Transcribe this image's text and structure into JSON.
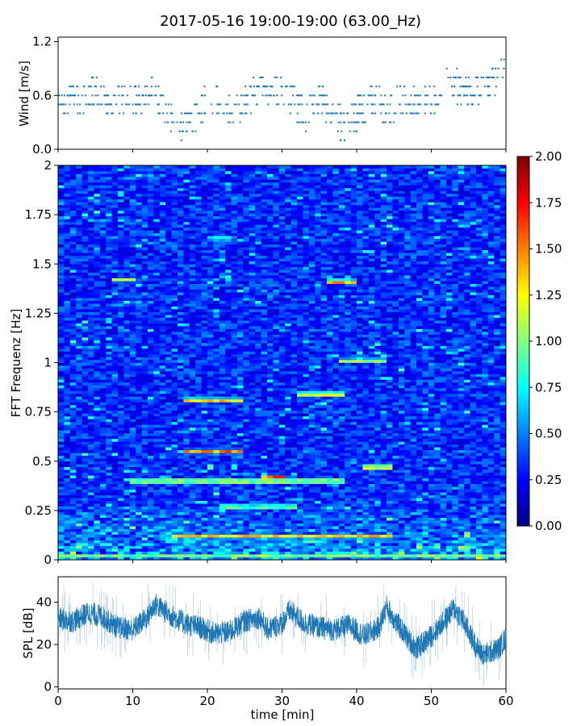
{
  "figure_title": "2017-05-16 19:00-19:00 (63.00_Hz)",
  "chart_data": [
    {
      "id": "wind",
      "type": "scatter",
      "title": "",
      "xlabel": "",
      "ylabel": "Wind [m/s]",
      "xlim": [
        0,
        60
      ],
      "ylim": [
        0,
        1.25
      ],
      "yticks": [
        0.0,
        0.6,
        1.2
      ],
      "ytick_labels": [
        "0.0",
        "0.6",
        "1.2"
      ],
      "xticks": [
        0,
        10,
        20,
        30,
        40,
        50,
        60
      ],
      "color": "#1f77b4",
      "series": [
        {
          "name": "wind",
          "x": [
            0,
            3,
            5,
            7,
            9,
            11,
            13,
            15,
            16,
            17,
            18,
            20,
            22,
            24,
            26,
            27,
            29,
            31,
            33,
            35,
            37,
            38,
            40,
            42,
            44,
            46,
            48,
            50,
            52,
            53,
            55,
            57,
            59,
            60
          ],
          "y": [
            0.55,
            0.55,
            0.65,
            0.5,
            0.6,
            0.6,
            0.62,
            0.35,
            0.3,
            0.25,
            0.3,
            0.6,
            0.45,
            0.4,
            0.6,
            0.75,
            0.65,
            0.6,
            0.4,
            0.55,
            0.4,
            0.25,
            0.4,
            0.55,
            0.45,
            0.55,
            0.5,
            0.55,
            0.7,
            0.75,
            0.6,
            0.7,
            0.8,
            0.9
          ]
        }
      ]
    },
    {
      "id": "spectrogram",
      "type": "heatmap",
      "title": "",
      "xlabel": "",
      "ylabel": "FFT Frequenz [Hz]",
      "xlim": [
        0,
        60
      ],
      "ylim": [
        0,
        2
      ],
      "yticks": [
        0,
        0.25,
        0.5,
        0.75,
        1,
        1.25,
        1.5,
        1.75,
        2
      ],
      "ytick_labels": [
        "0",
        "0.25",
        "0.5",
        "0.75",
        "1",
        "1.25",
        "1.5",
        "1.75",
        "2"
      ],
      "colormap": "jet",
      "clim": [
        0,
        2
      ],
      "colorbar_ticks": [
        "0.00",
        "0.25",
        "0.50",
        "0.75",
        "1.00",
        "1.25",
        "1.50",
        "1.75",
        "2.00"
      ],
      "features": [
        {
          "f": 0.02,
          "t0": 0,
          "t1": 60,
          "v": 1.2
        },
        {
          "f": 0.12,
          "t0": 15,
          "t1": 45,
          "v": 1.6
        },
        {
          "f": 0.27,
          "t0": 22,
          "t1": 32,
          "v": 1.4
        },
        {
          "f": 0.4,
          "t0": 10,
          "t1": 38,
          "v": 1.7
        },
        {
          "f": 0.42,
          "t0": 27,
          "t1": 30,
          "v": 1.9
        },
        {
          "f": 0.47,
          "t0": 41,
          "t1": 45,
          "v": 1.8
        },
        {
          "f": 0.55,
          "t0": 17,
          "t1": 25,
          "v": 1.7
        },
        {
          "f": 0.81,
          "t0": 17,
          "t1": 25,
          "v": 1.7
        },
        {
          "f": 0.84,
          "t0": 32,
          "t1": 38,
          "v": 1.8
        },
        {
          "f": 1.01,
          "t0": 38,
          "t1": 44,
          "v": 1.4
        },
        {
          "f": 1.41,
          "t0": 36,
          "t1": 40,
          "v": 1.8
        },
        {
          "f": 1.42,
          "t0": 7,
          "t1": 10,
          "v": 1.3
        },
        {
          "f": 1.63,
          "t0": 20,
          "t1": 23,
          "v": 1.1
        }
      ]
    },
    {
      "id": "spl",
      "type": "line",
      "title": "",
      "xlabel": "time [min]",
      "ylabel": "SPL [dB]",
      "xlim": [
        0,
        60
      ],
      "ylim": [
        -1,
        52
      ],
      "yticks": [
        0,
        20,
        40
      ],
      "ytick_labels": [
        "0",
        "20",
        "40"
      ],
      "xticks": [
        0,
        10,
        20,
        30,
        40,
        50,
        60
      ],
      "xtick_labels": [
        "0",
        "10",
        "20",
        "30",
        "40",
        "50",
        "60"
      ],
      "color": "#1f77b4",
      "series": [
        {
          "name": "SPL",
          "x": [
            0,
            2,
            4,
            6,
            8,
            10,
            12,
            13,
            15,
            17,
            19,
            21,
            23,
            25,
            27,
            28,
            30,
            31,
            33,
            35,
            37,
            39,
            41,
            43,
            44,
            45,
            47,
            48,
            50,
            51,
            53,
            54,
            56,
            57,
            59,
            60
          ],
          "y": [
            32,
            31,
            35,
            33,
            28,
            27,
            33,
            39,
            34,
            30,
            28,
            25,
            26,
            31,
            33,
            27,
            30,
            36,
            30,
            28,
            27,
            29,
            24,
            28,
            38,
            32,
            22,
            18,
            24,
            28,
            37,
            33,
            19,
            15,
            18,
            23
          ]
        }
      ]
    }
  ]
}
